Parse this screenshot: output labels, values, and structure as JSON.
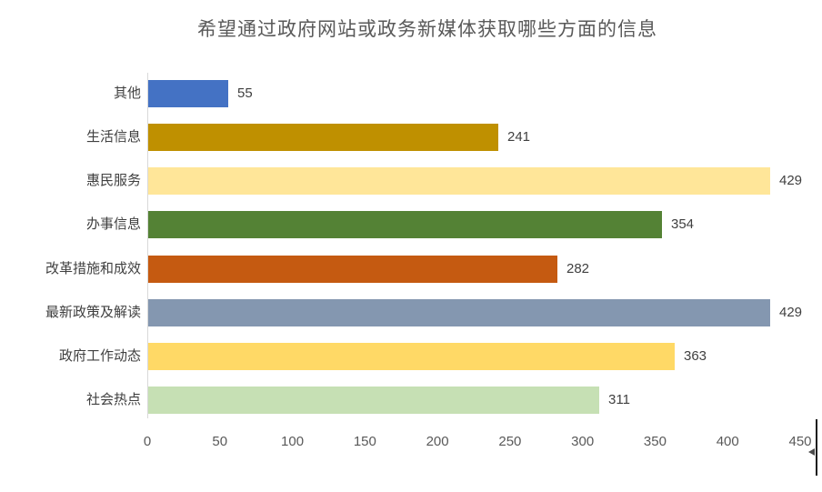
{
  "chart_data": {
    "type": "bar",
    "orientation": "horizontal",
    "title": "希望通过政府网站或政务新媒体获取哪些方面的信息",
    "categories": [
      "其他",
      "生活信息",
      "惠民服务",
      "办事信息",
      "改革措施和成效",
      "最新政策及解读",
      "政府工作动态",
      "社会热点"
    ],
    "values": [
      55,
      241,
      429,
      354,
      282,
      429,
      363,
      311
    ],
    "value_labels": [
      "55",
      "241",
      "429",
      "354",
      "282",
      "429",
      "363",
      "311"
    ],
    "bar_colors": [
      "#4472c4",
      "#bf9000",
      "#ffe699",
      "#548235",
      "#c55a11",
      "#8497b0",
      "#ffd966",
      "#c6e0b4"
    ],
    "x_ticks": [
      0,
      50,
      100,
      150,
      200,
      250,
      300,
      350,
      400,
      450
    ],
    "xlim": [
      0,
      450
    ],
    "xlabel": "",
    "ylabel": "",
    "grid": "off",
    "legend": "none",
    "title_color": "#595959",
    "category_label_color": "#404040",
    "value_label_color": "#404040",
    "tick_label_color": "#595959",
    "axis_line_color": "#d9d9d9",
    "background_color": "#ffffff"
  }
}
